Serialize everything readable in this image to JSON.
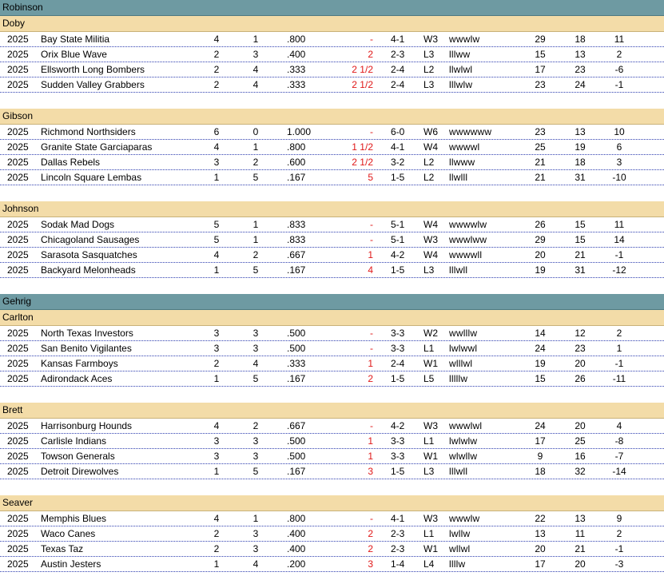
{
  "leagues": [
    {
      "name": "Robinson",
      "divisions": [
        {
          "name": "Doby",
          "teams": [
            {
              "year": "2025",
              "name": "Bay State Militia",
              "w": "4",
              "l": "1",
              "pct": ".800",
              "gb": "-",
              "record": "4-1",
              "streak": "W3",
              "last10": "wwwlw",
              "rs": "29",
              "ra": "18",
              "diff": "11"
            },
            {
              "year": "2025",
              "name": "Orix  Blue Wave",
              "w": "2",
              "l": "3",
              "pct": ".400",
              "gb": "2",
              "record": "2-3",
              "streak": "L3",
              "last10": "lllww",
              "rs": "15",
              "ra": "13",
              "diff": "2"
            },
            {
              "year": "2025",
              "name": "Ellsworth Long Bombers",
              "w": "2",
              "l": "4",
              "pct": ".333",
              "gb": "2 1/2",
              "record": "2-4",
              "streak": "L2",
              "last10": "llwlwl",
              "rs": "17",
              "ra": "23",
              "diff": "-6"
            },
            {
              "year": "2025",
              "name": "Sudden Valley Grabbers",
              "w": "2",
              "l": "4",
              "pct": ".333",
              "gb": "2 1/2",
              "record": "2-4",
              "streak": "L3",
              "last10": "lllwlw",
              "rs": "23",
              "ra": "24",
              "diff": "-1"
            }
          ]
        },
        {
          "name": "Gibson",
          "teams": [
            {
              "year": "2025",
              "name": "Richmond Northsiders",
              "w": "6",
              "l": "0",
              "pct": "1.000",
              "gb": "-",
              "record": "6-0",
              "streak": "W6",
              "last10": "wwwwww",
              "rs": "23",
              "ra": "13",
              "diff": "10"
            },
            {
              "year": "2025",
              "name": "Granite State Garciaparas",
              "w": "4",
              "l": "1",
              "pct": ".800",
              "gb": "1 1/2",
              "record": "4-1",
              "streak": "W4",
              "last10": "wwwwl",
              "rs": "25",
              "ra": "19",
              "diff": "6"
            },
            {
              "year": "2025",
              "name": "Dallas Rebels",
              "w": "3",
              "l": "2",
              "pct": ".600",
              "gb": "2 1/2",
              "record": "3-2",
              "streak": "L2",
              "last10": "llwww",
              "rs": "21",
              "ra": "18",
              "diff": "3"
            },
            {
              "year": "2025",
              "name": "Lincoln Square Lembas",
              "w": "1",
              "l": "5",
              "pct": ".167",
              "gb": "5",
              "record": "1-5",
              "streak": "L2",
              "last10": "llwlll",
              "rs": "21",
              "ra": "31",
              "diff": "-10"
            }
          ]
        },
        {
          "name": "Johnson",
          "teams": [
            {
              "year": "2025",
              "name": "Sodak Mad Dogs",
              "w": "5",
              "l": "1",
              "pct": ".833",
              "gb": "-",
              "record": "5-1",
              "streak": "W4",
              "last10": "wwwwlw",
              "rs": "26",
              "ra": "15",
              "diff": "11"
            },
            {
              "year": "2025",
              "name": "Chicagoland Sausages",
              "w": "5",
              "l": "1",
              "pct": ".833",
              "gb": "-",
              "record": "5-1",
              "streak": "W3",
              "last10": "wwwlww",
              "rs": "29",
              "ra": "15",
              "diff": "14"
            },
            {
              "year": "2025",
              "name": "Sarasota Sasquatches",
              "w": "4",
              "l": "2",
              "pct": ".667",
              "gb": "1",
              "record": "4-2",
              "streak": "W4",
              "last10": "wwwwll",
              "rs": "20",
              "ra": "21",
              "diff": "-1"
            },
            {
              "year": "2025",
              "name": "Backyard Melonheads",
              "w": "1",
              "l": "5",
              "pct": ".167",
              "gb": "4",
              "record": "1-5",
              "streak": "L3",
              "last10": "lllwll",
              "rs": "19",
              "ra": "31",
              "diff": "-12"
            }
          ]
        }
      ]
    },
    {
      "name": "Gehrig",
      "divisions": [
        {
          "name": "Carlton",
          "teams": [
            {
              "year": "2025",
              "name": "North Texas Investors",
              "w": "3",
              "l": "3",
              "pct": ".500",
              "gb": "-",
              "record": "3-3",
              "streak": "W2",
              "last10": "wwlllw",
              "rs": "14",
              "ra": "12",
              "diff": "2"
            },
            {
              "year": "2025",
              "name": "San Benito Vigilantes",
              "w": "3",
              "l": "3",
              "pct": ".500",
              "gb": "-",
              "record": "3-3",
              "streak": "L1",
              "last10": "lwlwwl",
              "rs": "24",
              "ra": "23",
              "diff": "1"
            },
            {
              "year": "2025",
              "name": "Kansas Farmboys",
              "w": "2",
              "l": "4",
              "pct": ".333",
              "gb": "1",
              "record": "2-4",
              "streak": "W1",
              "last10": "wlllwl",
              "rs": "19",
              "ra": "20",
              "diff": "-1"
            },
            {
              "year": "2025",
              "name": "Adirondack Aces",
              "w": "1",
              "l": "5",
              "pct": ".167",
              "gb": "2",
              "record": "1-5",
              "streak": "L5",
              "last10": "lllllw",
              "rs": "15",
              "ra": "26",
              "diff": "-11"
            }
          ]
        },
        {
          "name": "Brett",
          "teams": [
            {
              "year": "2025",
              "name": "Harrisonburg Hounds",
              "w": "4",
              "l": "2",
              "pct": ".667",
              "gb": "-",
              "record": "4-2",
              "streak": "W3",
              "last10": "wwwlwl",
              "rs": "24",
              "ra": "20",
              "diff": "4"
            },
            {
              "year": "2025",
              "name": "Carlisle Indians",
              "w": "3",
              "l": "3",
              "pct": ".500",
              "gb": "1",
              "record": "3-3",
              "streak": "L1",
              "last10": "lwlwlw",
              "rs": "17",
              "ra": "25",
              "diff": "-8"
            },
            {
              "year": "2025",
              "name": "Towson  Generals",
              "w": "3",
              "l": "3",
              "pct": ".500",
              "gb": "1",
              "record": "3-3",
              "streak": "W1",
              "last10": "wlwllw",
              "rs": "9",
              "ra": "16",
              "diff": "-7"
            },
            {
              "year": "2025",
              "name": "Detroit Direwolves",
              "w": "1",
              "l": "5",
              "pct": ".167",
              "gb": "3",
              "record": "1-5",
              "streak": "L3",
              "last10": "lllwll",
              "rs": "18",
              "ra": "32",
              "diff": "-14"
            }
          ]
        },
        {
          "name": "Seaver",
          "teams": [
            {
              "year": "2025",
              "name": "Memphis Blues",
              "w": "4",
              "l": "1",
              "pct": ".800",
              "gb": "-",
              "record": "4-1",
              "streak": "W3",
              "last10": "wwwlw",
              "rs": "22",
              "ra": "13",
              "diff": "9"
            },
            {
              "year": "2025",
              "name": "Waco Canes",
              "w": "2",
              "l": "3",
              "pct": ".400",
              "gb": "2",
              "record": "2-3",
              "streak": "L1",
              "last10": "lwllw",
              "rs": "13",
              "ra": "11",
              "diff": "2"
            },
            {
              "year": "2025",
              "name": "Texas Taz",
              "w": "2",
              "l": "3",
              "pct": ".400",
              "gb": "2",
              "record": "2-3",
              "streak": "W1",
              "last10": "wllwl",
              "rs": "20",
              "ra": "21",
              "diff": "-1"
            },
            {
              "year": "2025",
              "name": "Austin Jesters",
              "w": "1",
              "l": "4",
              "pct": ".200",
              "gb": "3",
              "record": "1-4",
              "streak": "L4",
              "last10": "llllw",
              "rs": "17",
              "ra": "20",
              "diff": "-3"
            }
          ]
        }
      ]
    }
  ]
}
